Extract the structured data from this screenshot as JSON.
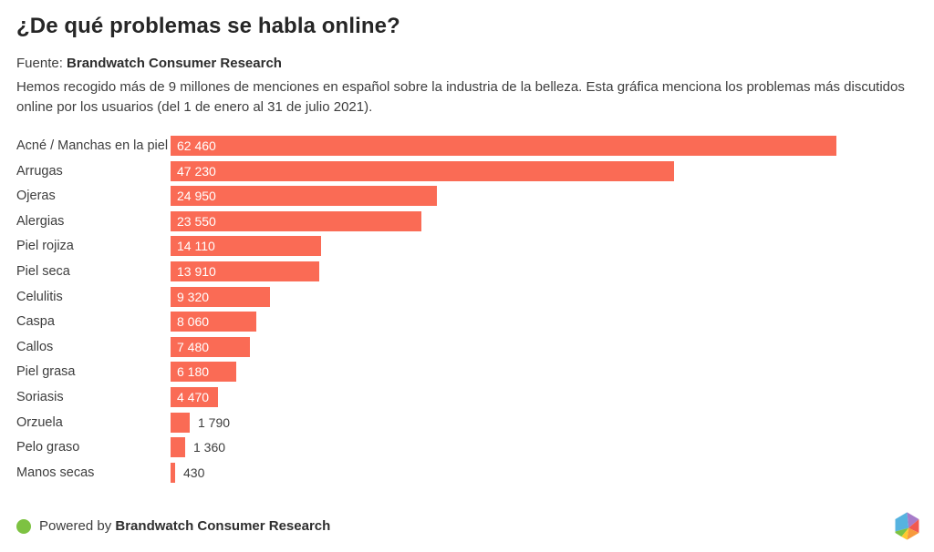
{
  "header": {
    "title": "¿De qué problemas se habla online?",
    "source_prefix": "Fuente:",
    "source_name": "Brandwatch Consumer Research",
    "description": "Hemos recogido más de 9 millones de menciones en español sobre la industria de la belleza. Esta gráfica menciona los problemas más discutidos online por los usuarios (del 1 de enero al 31 de julio 2021)."
  },
  "chart_data": {
    "type": "bar",
    "orientation": "horizontal",
    "title": "¿De qué problemas se habla online?",
    "categories": [
      "Acné / Manchas en la piel",
      "Arrugas",
      "Ojeras",
      "Alergias",
      "Piel rojiza",
      "Piel seca",
      "Celulitis",
      "Caspa",
      "Callos",
      "Piel grasa",
      "Soriasis",
      "Orzuela",
      "Pelo graso",
      "Manos secas"
    ],
    "values": [
      62460,
      47230,
      24950,
      23550,
      14110,
      13910,
      9320,
      8060,
      7480,
      6180,
      4470,
      1790,
      1360,
      430
    ],
    "value_labels": [
      "62 460",
      "47 230",
      "24 950",
      "23 550",
      "14 110",
      "13 910",
      "9 320",
      "8 060",
      "7 480",
      "6 180",
      "4 470",
      "1 790",
      "1 360",
      "430"
    ],
    "xlim": [
      0,
      62460
    ],
    "grid": false,
    "legend": false,
    "bar_color": "#fa6b55"
  },
  "footer": {
    "powered_by_prefix": "Powered by ",
    "powered_by_name": "Brandwatch Consumer Research",
    "dot_color": "#7dc242"
  },
  "colors": {
    "bar": "#fa6b55",
    "title_text": "#262626",
    "body_text": "#3d3d3d",
    "value_label_inside": "#ffffff",
    "value_label_outside": "#3d3d3d",
    "accent_green": "#7dc242"
  },
  "logo": {
    "name": "brandwatch-hexagon",
    "facet_colors": [
      "#56b3e0",
      "#a77cc9",
      "#f1594f",
      "#f79a3c",
      "#fec92e",
      "#7dc242"
    ]
  }
}
